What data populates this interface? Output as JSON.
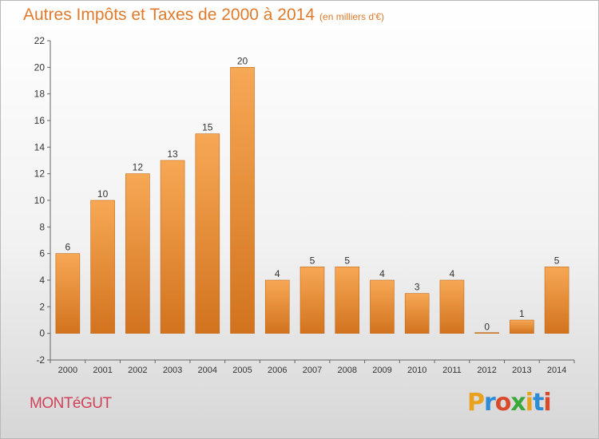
{
  "header": {
    "title": "Autres Impôts et Taxes de 2000 à 2014",
    "unit": "(en milliers d'€)"
  },
  "footer": {
    "commune": "MONTéGUT",
    "logo_letters": [
      "P",
      "r",
      "o",
      "x",
      "i",
      "t",
      "i"
    ],
    "logo_colors": [
      "#e8a21e",
      "#2e8bd6",
      "#d94a2b",
      "#3aa83a",
      "#e8a21e",
      "#2e8bd6",
      "#d94a2b"
    ]
  },
  "colors": {
    "bar_light": "#f7a855",
    "bar_dark": "#d2731e",
    "axis": "#666666",
    "text": "#333333",
    "title": "#e07a2c",
    "commune": "#d0425a"
  },
  "chart_data": {
    "type": "bar",
    "categories": [
      "2000",
      "2001",
      "2002",
      "2003",
      "2004",
      "2005",
      "2006",
      "2007",
      "2008",
      "2009",
      "2010",
      "2011",
      "2012",
      "2013",
      "2014"
    ],
    "values": [
      6,
      10,
      12,
      13,
      15,
      20,
      4,
      5,
      5,
      4,
      3,
      4,
      0,
      1,
      5
    ],
    "data_labels": [
      "6",
      "10",
      "12",
      "13",
      "15",
      "20",
      "4",
      "5",
      "5",
      "4",
      "3",
      "4",
      "0",
      "1",
      "5"
    ],
    "ylim": [
      -2,
      22
    ],
    "yticks": [
      "-2",
      "0",
      "2",
      "4",
      "6",
      "8",
      "10",
      "12",
      "14",
      "16",
      "18",
      "20",
      "22"
    ],
    "grid": false,
    "legend": "none"
  }
}
